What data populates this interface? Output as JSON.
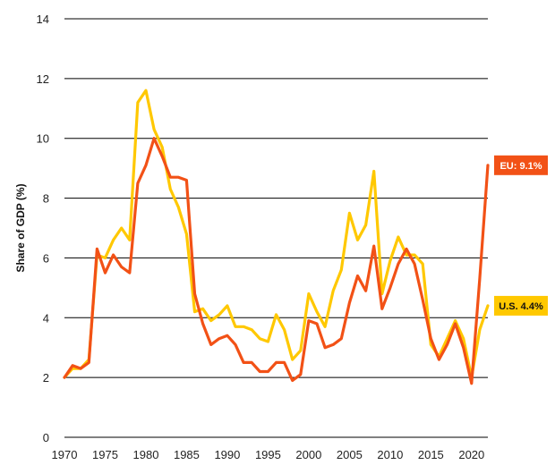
{
  "chart_data": {
    "type": "line",
    "title": "",
    "xlabel": "",
    "ylabel": "Share of GDP (%)",
    "xlim": [
      1970,
      2022
    ],
    "ylim": [
      0,
      14
    ],
    "x_ticks": [
      1970,
      1975,
      1980,
      1985,
      1990,
      1995,
      2000,
      2005,
      2010,
      2015,
      2020
    ],
    "y_ticks": [
      0,
      2,
      4,
      6,
      8,
      10,
      12,
      14
    ],
    "grid": "horizontal",
    "x": [
      1970,
      1971,
      1972,
      1973,
      1974,
      1975,
      1976,
      1977,
      1978,
      1979,
      1980,
      1981,
      1982,
      1983,
      1984,
      1985,
      1986,
      1987,
      1988,
      1989,
      1990,
      1991,
      1992,
      1993,
      1994,
      1995,
      1996,
      1997,
      1998,
      1999,
      2000,
      2001,
      2002,
      2003,
      2004,
      2005,
      2006,
      2007,
      2008,
      2009,
      2010,
      2011,
      2012,
      2013,
      2014,
      2015,
      2016,
      2017,
      2018,
      2019,
      2020,
      2021,
      2022
    ],
    "series": [
      {
        "name": "U.S.",
        "color": "#FFC800",
        "values": [
          2.0,
          2.3,
          2.3,
          2.6,
          6.1,
          6.0,
          6.6,
          7.0,
          6.6,
          11.2,
          11.6,
          10.3,
          9.7,
          8.3,
          7.7,
          6.8,
          4.2,
          4.3,
          3.9,
          4.1,
          4.4,
          3.7,
          3.7,
          3.6,
          3.3,
          3.2,
          4.1,
          3.6,
          2.6,
          2.9,
          4.8,
          4.2,
          3.7,
          4.9,
          5.6,
          7.5,
          6.6,
          7.1,
          8.9,
          4.8,
          5.9,
          6.7,
          6.1,
          6.1,
          5.8,
          3.1,
          2.7,
          3.3,
          3.9,
          3.3,
          2.0,
          3.6,
          4.4
        ]
      },
      {
        "name": "EU",
        "color": "#F25116",
        "values": [
          2.0,
          2.4,
          2.3,
          2.5,
          6.3,
          5.5,
          6.1,
          5.7,
          5.5,
          8.5,
          9.1,
          10.0,
          9.4,
          8.7,
          8.7,
          8.6,
          4.8,
          3.8,
          3.1,
          3.3,
          3.4,
          3.1,
          2.5,
          2.5,
          2.2,
          2.2,
          2.5,
          2.5,
          1.9,
          2.1,
          3.9,
          3.8,
          3.0,
          3.1,
          3.3,
          4.5,
          5.4,
          4.9,
          6.4,
          4.3,
          5.0,
          5.8,
          6.3,
          5.8,
          4.6,
          3.3,
          2.6,
          3.1,
          3.8,
          3.0,
          1.8,
          5.3,
          9.1
        ]
      }
    ],
    "annotations": [
      {
        "series": "EU",
        "text": "EU: 9.1%",
        "bg": "#F25116",
        "fg": "#FFFFFF"
      },
      {
        "series": "U.S.",
        "text": "U.S. 4.4%",
        "bg": "#FFC800",
        "fg": "#111111"
      }
    ]
  }
}
